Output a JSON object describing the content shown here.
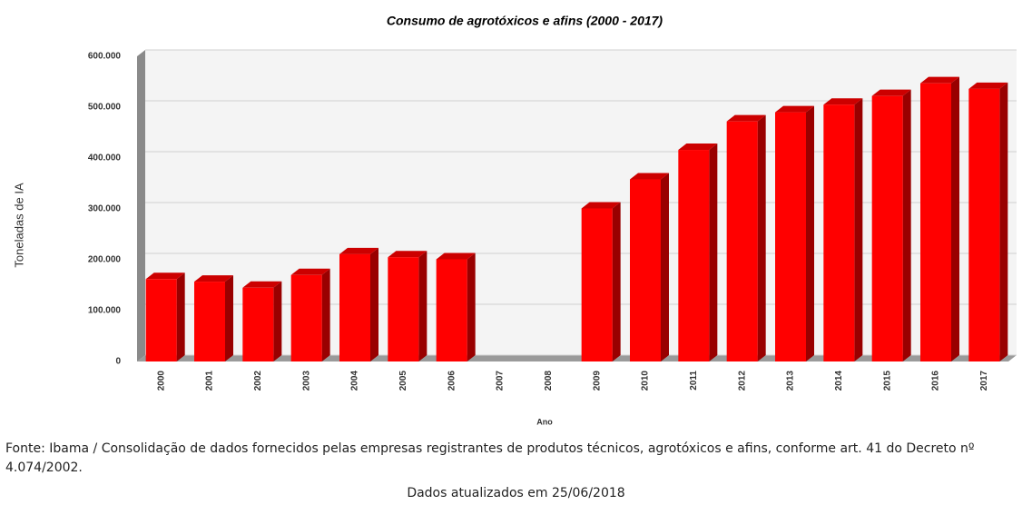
{
  "chart_data": {
    "type": "bar",
    "title": "Consumo de agrotóxicos e afins (2000 - 2017)",
    "x_label": "Ano",
    "y_label": "Toneladas de IA",
    "categories": [
      "2000",
      "2001",
      "2002",
      "2003",
      "2004",
      "2005",
      "2006",
      "2007",
      "2008",
      "2009",
      "2010",
      "2011",
      "2012",
      "2013",
      "2014",
      "2015",
      "2016",
      "2017"
    ],
    "values": [
      162000,
      157000,
      145000,
      170000,
      211000,
      205000,
      201000,
      null,
      null,
      301000,
      358000,
      416000,
      472000,
      490000,
      505000,
      522000,
      547000,
      536000
    ],
    "color": "#ff0000",
    "ylim": [
      0,
      600000
    ],
    "yticks": [
      0,
      {
        "value": 100000,
        "label": "100.000"
      },
      {
        "value": 200000,
        "label": "200.000"
      },
      {
        "value": 300000,
        "label": "300.000"
      },
      {
        "value": 400000,
        "label": "400.000"
      },
      {
        "value": 500000,
        "label": "500.000"
      },
      {
        "value": 600000,
        "label": "600.000"
      }
    ],
    "grid": true
  },
  "footer": {
    "source": "Fonte: Ibama / Consolidação de dados fornecidos pelas empresas registrantes de produtos técnicos, agrotóxicos e afins, conforme art. 41 do Decreto nº 4.074/2002.",
    "updated": "Dados atualizados em 25/06/2018"
  }
}
